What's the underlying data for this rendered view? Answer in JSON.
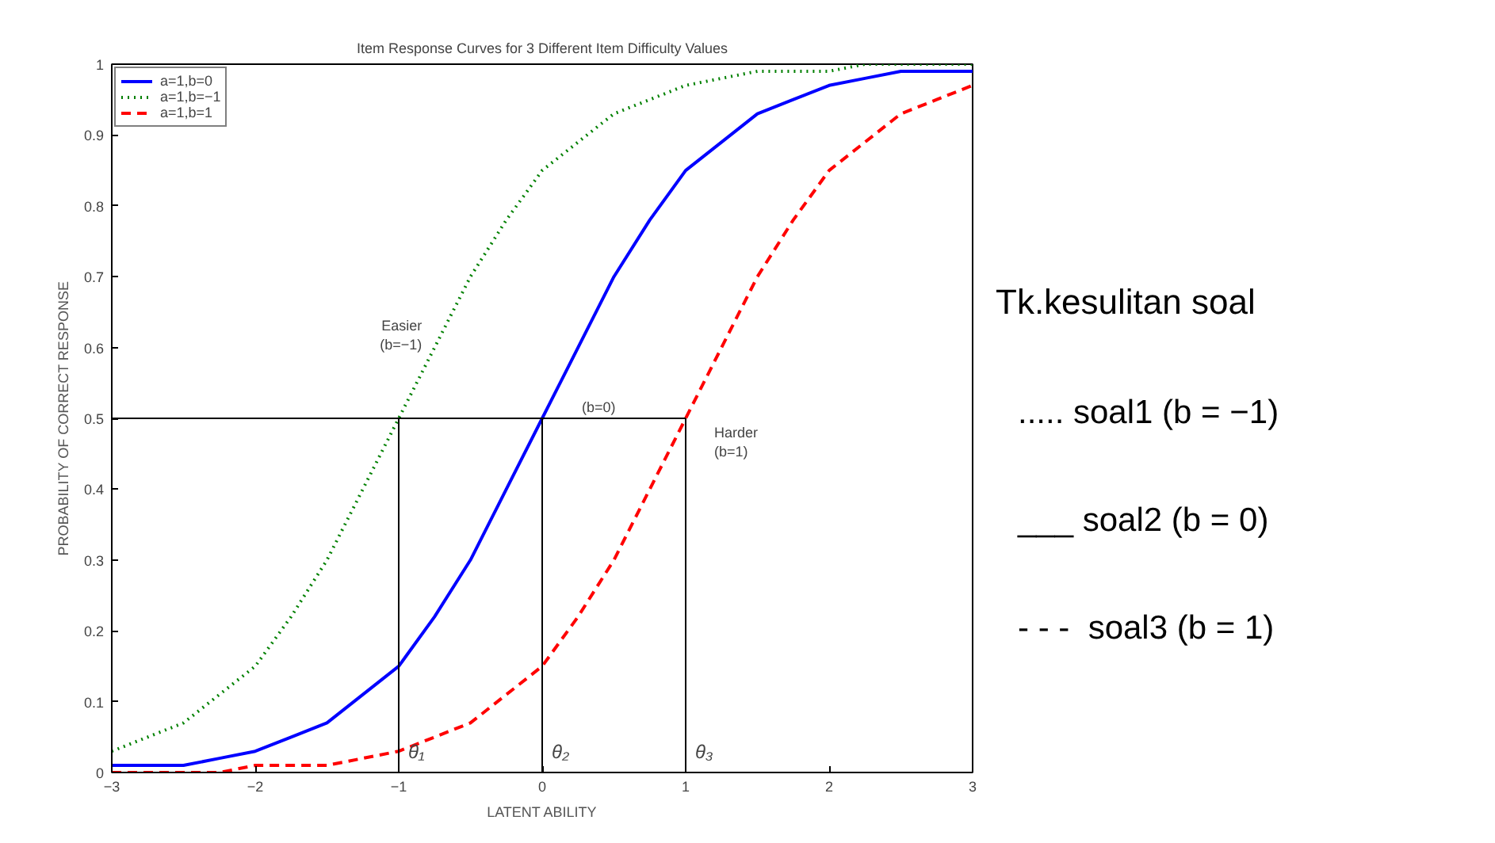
{
  "chart_data": {
    "type": "line",
    "title": "Item Response Curves for 3 Different Item Difficulty Values",
    "xlabel": "LATENT ABILITY",
    "ylabel": "PROBABILITY OF CORRECT RESPONSE",
    "x": [
      -3,
      -2.75,
      -2.5,
      -2.25,
      -2,
      -1.75,
      -1.5,
      -1.25,
      -1,
      -0.75,
      -0.5,
      -0.25,
      0,
      0.25,
      0.5,
      0.75,
      1,
      1.25,
      1.5,
      1.75,
      2,
      2.25,
      2.5,
      2.75,
      3
    ],
    "series": [
      {
        "name": "a=1,b=0",
        "color": "#0000ff",
        "line_style": "solid",
        "values": [
          0.01,
          0.01,
          0.01,
          0.02,
          0.03,
          0.05,
          0.07,
          0.11,
          0.15,
          0.22,
          0.3,
          0.4,
          0.5,
          0.6,
          0.7,
          0.78,
          0.85,
          0.89,
          0.93,
          0.95,
          0.97,
          0.98,
          0.99,
          0.99,
          0.99
        ]
      },
      {
        "name": "a=1,b=−1",
        "color": "#008000",
        "line_style": "dotted",
        "values": [
          0.03,
          0.05,
          0.07,
          0.11,
          0.15,
          0.22,
          0.3,
          0.4,
          0.5,
          0.6,
          0.7,
          0.78,
          0.85,
          0.89,
          0.93,
          0.95,
          0.97,
          0.98,
          0.99,
          0.99,
          0.99,
          1.0,
          1.0,
          1.0,
          1.0
        ]
      },
      {
        "name": "a=1,b=1",
        "color": "#ff0000",
        "line_style": "dashed",
        "values": [
          0.0,
          0.0,
          0.0,
          0.0,
          0.01,
          0.01,
          0.01,
          0.02,
          0.03,
          0.05,
          0.07,
          0.11,
          0.15,
          0.22,
          0.3,
          0.4,
          0.5,
          0.6,
          0.7,
          0.78,
          0.85,
          0.89,
          0.93,
          0.95,
          0.97
        ]
      }
    ],
    "xlim": [
      -3,
      3
    ],
    "ylim": [
      0,
      1
    ],
    "xticks": [
      {
        "value": -3,
        "label": "−3"
      },
      {
        "value": -2,
        "label": "−2"
      },
      {
        "value": -1,
        "label": "−1"
      },
      0,
      1,
      2,
      3
    ],
    "yticks": [
      0,
      0.1,
      0.2,
      0.3,
      0.4,
      0.5,
      0.6,
      0.7,
      0.8,
      0.9,
      1
    ],
    "ref_lines": [
      {
        "axis": "y",
        "value": 0.5,
        "color": "#000000"
      },
      {
        "axis": "x",
        "value": -1,
        "label": "θ₁",
        "color": "#000000"
      },
      {
        "axis": "x",
        "value": 0,
        "label": "θ₂",
        "color": "#000000"
      },
      {
        "axis": "x",
        "value": 1,
        "label": "θ₃",
        "color": "#000000"
      }
    ],
    "annotations": [
      {
        "text": "Easier\n(b=−1)",
        "x": -0.75,
        "y": 0.6
      },
      {
        "text": "(b=0)",
        "x": 0,
        "y": 0.5
      },
      {
        "text": "Harder\n(b=1)",
        "x": 1,
        "y": 0.5
      },
      "Tk.kesulitan soal",
      "..... soal1 (b = −1)",
      "___ soal2 (b = 0)",
      "- - -  soal3 (b = 1)"
    ],
    "legend": "top left",
    "grid": false,
    "marker": "none"
  }
}
